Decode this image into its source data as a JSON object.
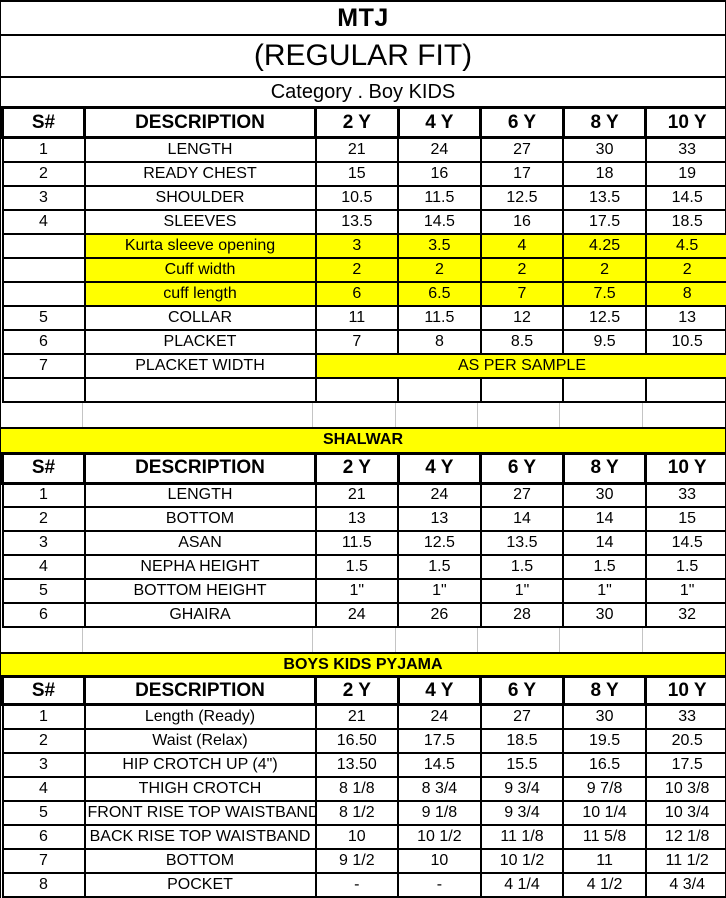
{
  "title": "MTJ",
  "subtitle": "(REGULAR FIT)",
  "category_line": "Category . Boy KIDS",
  "colors": {
    "highlight_yellow": "#ffff00",
    "border_black": "#000000",
    "faint_gridline_gray": "#c4c4c4",
    "text": "#000000"
  },
  "columns": [
    "S#",
    "DESCRIPTION",
    "2 Y",
    "4 Y",
    "6 Y",
    "8 Y",
    "10 Y"
  ],
  "tables": [
    {
      "name": "kurta",
      "banner": "",
      "rows": [
        {
          "sn": "1",
          "desc": "LENGTH",
          "highlight": false,
          "values": [
            "21",
            "24",
            "27",
            "30",
            "33"
          ]
        },
        {
          "sn": "2",
          "desc": "READY CHEST",
          "highlight": false,
          "values": [
            "15",
            "16",
            "17",
            "18",
            "19"
          ]
        },
        {
          "sn": "3",
          "desc": "SHOULDER",
          "highlight": false,
          "values": [
            "10.5",
            "11.5",
            "12.5",
            "13.5",
            "14.5"
          ]
        },
        {
          "sn": "4",
          "desc": "SLEEVES",
          "highlight": false,
          "values": [
            "13.5",
            "14.5",
            "16",
            "17.5",
            "18.5"
          ]
        },
        {
          "sn": "",
          "desc": "Kurta sleeve opening",
          "highlight": true,
          "values": [
            "3",
            "3.5",
            "4",
            "4.25",
            "4.5"
          ]
        },
        {
          "sn": "",
          "desc": "Cuff width",
          "highlight": true,
          "values": [
            "2",
            "2",
            "2",
            "2",
            "2"
          ]
        },
        {
          "sn": "",
          "desc": "cuff length",
          "highlight": true,
          "values": [
            "6",
            "6.5",
            "7",
            "7.5",
            "8"
          ]
        },
        {
          "sn": "5",
          "desc": "COLLAR",
          "highlight": false,
          "values": [
            "11",
            "11.5",
            "12",
            "12.5",
            "13"
          ]
        },
        {
          "sn": "6",
          "desc": "PLACKET",
          "highlight": false,
          "values": [
            "7",
            "8",
            "8.5",
            "9.5",
            "10.5"
          ]
        },
        {
          "sn": "7",
          "desc": "PLACKET WIDTH",
          "highlight": false,
          "merged_value": "AS PER SAMPLE",
          "merged_highlight": true
        }
      ],
      "trailing_empty_row": true
    },
    {
      "name": "shalwar",
      "banner": "SHALWAR",
      "rows": [
        {
          "sn": "1",
          "desc": "LENGTH",
          "highlight": false,
          "values": [
            "21",
            "24",
            "27",
            "30",
            "33"
          ]
        },
        {
          "sn": "2",
          "desc": "BOTTOM",
          "highlight": false,
          "values": [
            "13",
            "13",
            "14",
            "14",
            "15"
          ]
        },
        {
          "sn": "3",
          "desc": "ASAN",
          "highlight": false,
          "values": [
            "11.5",
            "12.5",
            "13.5",
            "14",
            "14.5"
          ]
        },
        {
          "sn": "4",
          "desc": "NEPHA HEIGHT",
          "highlight": false,
          "values": [
            "1.5",
            "1.5",
            "1.5",
            "1.5",
            "1.5"
          ]
        },
        {
          "sn": "5",
          "desc": "BOTTOM HEIGHT",
          "highlight": false,
          "values": [
            "1\"",
            "1\"",
            "1\"",
            "1\"",
            "1\""
          ]
        },
        {
          "sn": "6",
          "desc": "GHAIRA",
          "highlight": false,
          "values": [
            "24",
            "26",
            "28",
            "30",
            "32"
          ]
        }
      ],
      "trailing_empty_row": false
    },
    {
      "name": "pyjama",
      "banner": "BOYS KIDS PYJAMA",
      "rows": [
        {
          "sn": "1",
          "desc": "Length (Ready)",
          "highlight": false,
          "values": [
            "21",
            "24",
            "27",
            "30",
            "33"
          ]
        },
        {
          "sn": "2",
          "desc": "Waist (Relax)",
          "highlight": false,
          "values": [
            "16.50",
            "17.5",
            "18.5",
            "19.5",
            "20.5"
          ]
        },
        {
          "sn": "3",
          "desc": "HIP CROTCH UP (4\")",
          "highlight": false,
          "values": [
            "13.50",
            "14.5",
            "15.5",
            "16.5",
            "17.5"
          ]
        },
        {
          "sn": "4",
          "desc": "THIGH CROTCH",
          "highlight": false,
          "values": [
            "8 1/8",
            "8 3/4",
            "9 3/4",
            "9 7/8",
            "10 3/8"
          ]
        },
        {
          "sn": "5",
          "desc": "FRONT RISE TOP WAISTBAND",
          "highlight": false,
          "values": [
            "8 1/2",
            "9 1/8",
            "9 3/4",
            "10 1/4",
            "10 3/4"
          ]
        },
        {
          "sn": "6",
          "desc": "BACK RISE TOP WAISTBAND",
          "highlight": false,
          "values": [
            "10",
            "10 1/2",
            "11 1/8",
            "11 5/8",
            "12 1/8"
          ]
        },
        {
          "sn": "7",
          "desc": "BOTTOM",
          "highlight": false,
          "values": [
            "9 1/2",
            "10",
            "10 1/2",
            "11",
            "11 1/2"
          ]
        },
        {
          "sn": "8",
          "desc": "POCKET",
          "highlight": false,
          "values": [
            "-",
            "-",
            "4 1/4",
            "4 1/2",
            "4 3/4"
          ]
        }
      ],
      "trailing_empty_row": false
    }
  ]
}
